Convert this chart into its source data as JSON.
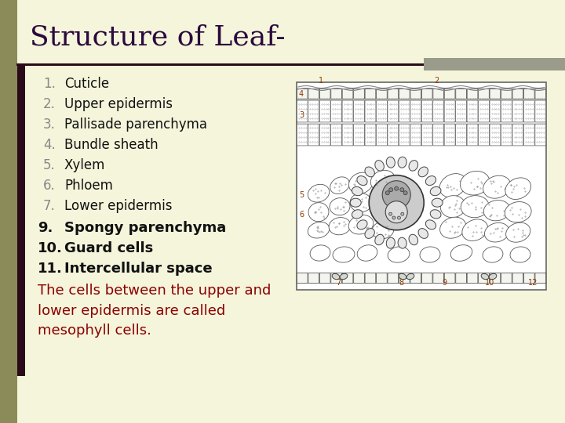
{
  "title": "Structure of Leaf-",
  "title_color": "#2B0A3D",
  "title_fontsize": 26,
  "bg_color": "#F5F5DC",
  "numbered_items": [
    "Cuticle",
    "Upper epidermis",
    "Pallisade parenchyma",
    "Bundle sheath",
    "Xylem",
    "Phloem",
    "Lower epidermis"
  ],
  "other_items": [
    [
      "9.",
      "Spongy parenchyma"
    ],
    [
      "10.",
      "Guard cells"
    ],
    [
      "11.",
      "Intercellular space"
    ]
  ],
  "note_text": "The cells between the upper and\nlower epidermis are called\nmesophyll cells.",
  "note_color": "#8B0000",
  "text_color": "#333333",
  "num_color": "#888888",
  "item_fontsize": 12,
  "note_fontsize": 12,
  "left_bar_color": "#8B8B5A",
  "dark_bar_color": "#2B0A1A",
  "gray_bar_color": "#9B9B8B",
  "diagram_label_color": "#8B3A00",
  "diagram_label_fontsize": 7
}
